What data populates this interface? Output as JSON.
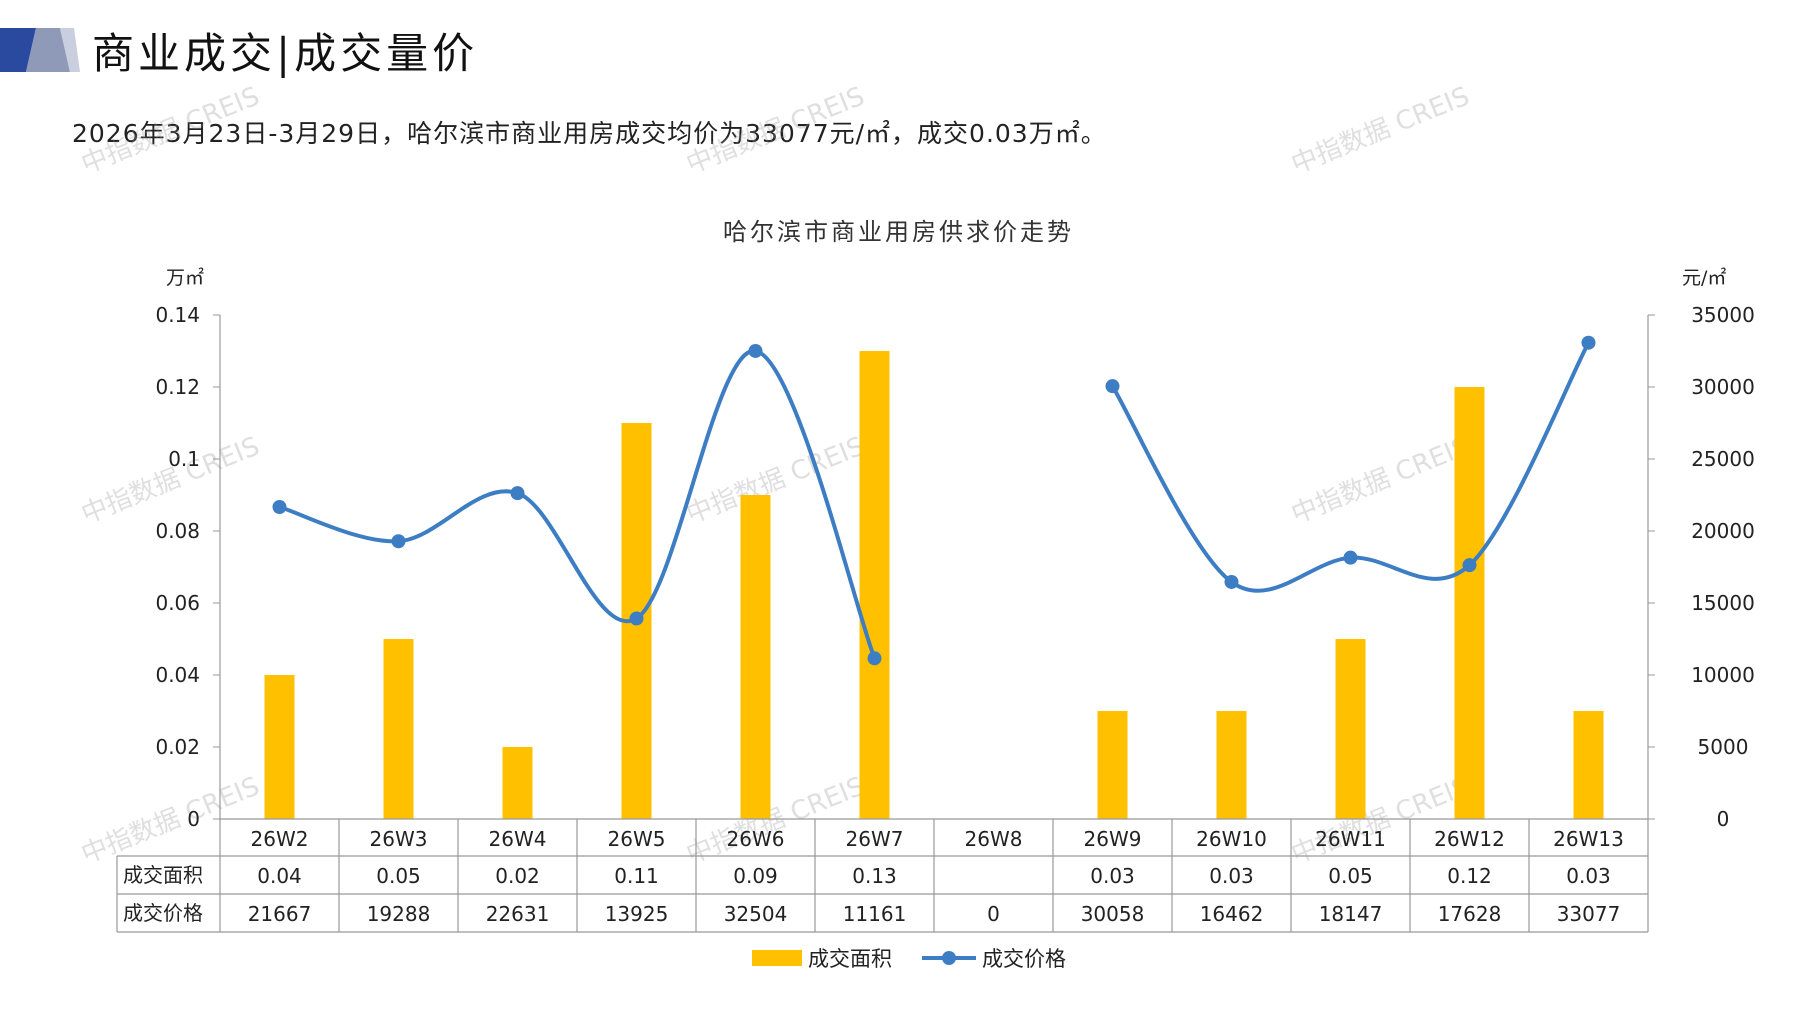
{
  "header": {
    "title": "商业成交|成交量价",
    "summary": "2026年3月23日-3月29日，哈尔滨市商业用房成交均价为33077元/㎡，成交0.03万㎡。"
  },
  "watermark_text": "中指数据 CREIS",
  "chart_data": {
    "type": "bar",
    "title": "哈尔滨市商业用房供求价走势",
    "categories": [
      "26W2",
      "26W3",
      "26W4",
      "26W5",
      "26W6",
      "26W7",
      "26W8",
      "26W9",
      "26W10",
      "26W11",
      "26W12",
      "26W13"
    ],
    "y_left": {
      "unit": "万㎡",
      "range": [
        0,
        0.14
      ],
      "ticks": [
        "0",
        "0.02",
        "0.04",
        "0.06",
        "0.08",
        "0.1",
        "0.12",
        "0.14"
      ]
    },
    "y_right": {
      "unit": "元/㎡",
      "range": [
        0,
        35000
      ],
      "ticks": [
        "0",
        "5000",
        "10000",
        "15000",
        "20000",
        "25000",
        "30000",
        "35000"
      ]
    },
    "series": [
      {
        "name": "成交面积",
        "type": "bar",
        "axis": "left",
        "color": "#FFC000",
        "values": [
          0.04,
          0.05,
          0.02,
          0.11,
          0.09,
          0.13,
          null,
          0.03,
          0.03,
          0.05,
          0.12,
          0.03
        ],
        "labels": [
          "0.04",
          "0.05",
          "0.02",
          "0.11",
          "0.09",
          "0.13",
          "",
          "0.03",
          "0.03",
          "0.05",
          "0.12",
          "0.03"
        ]
      },
      {
        "name": "成交价格",
        "type": "line",
        "smooth": true,
        "axis": "right",
        "color": "#3D7DC4",
        "values": [
          21667,
          19288,
          22631,
          13925,
          32504,
          11161,
          null,
          30058,
          16462,
          18147,
          17628,
          33077
        ],
        "labels": [
          "21667",
          "19288",
          "22631",
          "13925",
          "32504",
          "11161",
          "0",
          "30058",
          "16462",
          "18147",
          "17628",
          "33077"
        ]
      }
    ],
    "data_table": true,
    "legend_position": "bottom"
  }
}
